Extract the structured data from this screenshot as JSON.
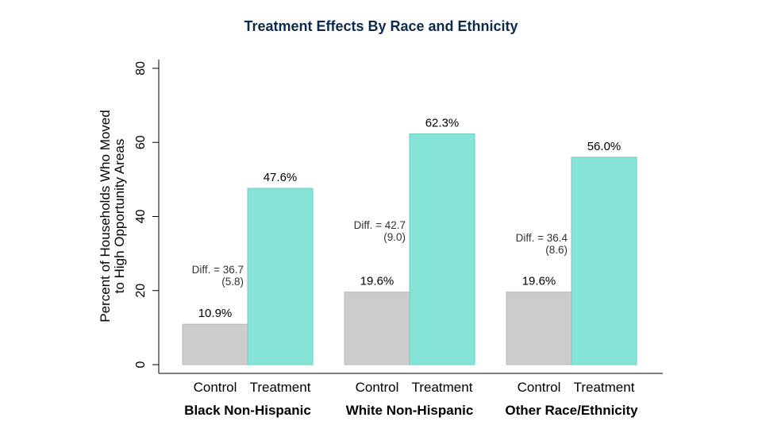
{
  "chart_data": {
    "type": "bar",
    "title": "Treatment Effects By Race and Ethnicity",
    "ylabel_lines": [
      "Percent of Households Who Moved",
      "to High Opportunity Areas"
    ],
    "xlabel": "",
    "ylim": [
      0,
      80
    ],
    "yticks": [
      0,
      20,
      40,
      60,
      80
    ],
    "grid": false,
    "series_names": [
      "Control",
      "Treatment"
    ],
    "colors": {
      "Control": "#cccccc",
      "Treatment": "#86e3d8"
    },
    "groups": [
      {
        "name": "Black Non-Hispanic",
        "bars": [
          {
            "series": "Control",
            "value": 10.9,
            "label": "10.9%"
          },
          {
            "series": "Treatment",
            "value": 47.6,
            "label": "47.6%"
          }
        ],
        "diff_line1": "Diff. = 36.7",
        "diff_line2": "(5.8)"
      },
      {
        "name": "White Non-Hispanic",
        "bars": [
          {
            "series": "Control",
            "value": 19.6,
            "label": "19.6%"
          },
          {
            "series": "Treatment",
            "value": 62.3,
            "label": "62.3%"
          }
        ],
        "diff_line1": "Diff. = 42.7",
        "diff_line2": "(9.0)"
      },
      {
        "name": "Other Race/Ethnicity",
        "bars": [
          {
            "series": "Control",
            "value": 19.6,
            "label": "19.6%"
          },
          {
            "series": "Treatment",
            "value": 56.0,
            "label": "56.0%"
          }
        ],
        "diff_line1": "Diff. = 36.4",
        "diff_line2": "(8.6)"
      }
    ]
  }
}
